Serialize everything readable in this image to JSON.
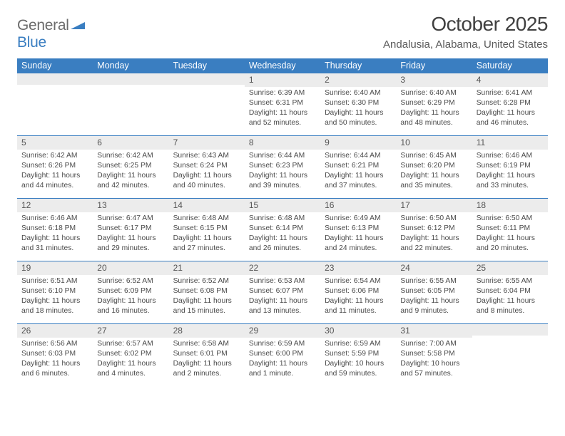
{
  "logo": {
    "textA": "General",
    "textB": "Blue"
  },
  "title": "October 2025",
  "location": "Andalusia, Alabama, United States",
  "colors": {
    "header_bg": "#3a7ec1",
    "header_text": "#ffffff",
    "daynum_bg": "#ececec",
    "daynum_text": "#555555",
    "body_text": "#4a4a4a",
    "rule": "#3a7ec1"
  },
  "weekdays": [
    "Sunday",
    "Monday",
    "Tuesday",
    "Wednesday",
    "Thursday",
    "Friday",
    "Saturday"
  ],
  "cells": [
    {
      "num": "",
      "sunrise": "",
      "sunset": "",
      "daylight": ""
    },
    {
      "num": "",
      "sunrise": "",
      "sunset": "",
      "daylight": ""
    },
    {
      "num": "",
      "sunrise": "",
      "sunset": "",
      "daylight": ""
    },
    {
      "num": "1",
      "sunrise": "6:39 AM",
      "sunset": "6:31 PM",
      "daylight": "11 hours and 52 minutes."
    },
    {
      "num": "2",
      "sunrise": "6:40 AM",
      "sunset": "6:30 PM",
      "daylight": "11 hours and 50 minutes."
    },
    {
      "num": "3",
      "sunrise": "6:40 AM",
      "sunset": "6:29 PM",
      "daylight": "11 hours and 48 minutes."
    },
    {
      "num": "4",
      "sunrise": "6:41 AM",
      "sunset": "6:28 PM",
      "daylight": "11 hours and 46 minutes."
    },
    {
      "num": "5",
      "sunrise": "6:42 AM",
      "sunset": "6:26 PM",
      "daylight": "11 hours and 44 minutes."
    },
    {
      "num": "6",
      "sunrise": "6:42 AM",
      "sunset": "6:25 PM",
      "daylight": "11 hours and 42 minutes."
    },
    {
      "num": "7",
      "sunrise": "6:43 AM",
      "sunset": "6:24 PM",
      "daylight": "11 hours and 40 minutes."
    },
    {
      "num": "8",
      "sunrise": "6:44 AM",
      "sunset": "6:23 PM",
      "daylight": "11 hours and 39 minutes."
    },
    {
      "num": "9",
      "sunrise": "6:44 AM",
      "sunset": "6:21 PM",
      "daylight": "11 hours and 37 minutes."
    },
    {
      "num": "10",
      "sunrise": "6:45 AM",
      "sunset": "6:20 PM",
      "daylight": "11 hours and 35 minutes."
    },
    {
      "num": "11",
      "sunrise": "6:46 AM",
      "sunset": "6:19 PM",
      "daylight": "11 hours and 33 minutes."
    },
    {
      "num": "12",
      "sunrise": "6:46 AM",
      "sunset": "6:18 PM",
      "daylight": "11 hours and 31 minutes."
    },
    {
      "num": "13",
      "sunrise": "6:47 AM",
      "sunset": "6:17 PM",
      "daylight": "11 hours and 29 minutes."
    },
    {
      "num": "14",
      "sunrise": "6:48 AM",
      "sunset": "6:15 PM",
      "daylight": "11 hours and 27 minutes."
    },
    {
      "num": "15",
      "sunrise": "6:48 AM",
      "sunset": "6:14 PM",
      "daylight": "11 hours and 26 minutes."
    },
    {
      "num": "16",
      "sunrise": "6:49 AM",
      "sunset": "6:13 PM",
      "daylight": "11 hours and 24 minutes."
    },
    {
      "num": "17",
      "sunrise": "6:50 AM",
      "sunset": "6:12 PM",
      "daylight": "11 hours and 22 minutes."
    },
    {
      "num": "18",
      "sunrise": "6:50 AM",
      "sunset": "6:11 PM",
      "daylight": "11 hours and 20 minutes."
    },
    {
      "num": "19",
      "sunrise": "6:51 AM",
      "sunset": "6:10 PM",
      "daylight": "11 hours and 18 minutes."
    },
    {
      "num": "20",
      "sunrise": "6:52 AM",
      "sunset": "6:09 PM",
      "daylight": "11 hours and 16 minutes."
    },
    {
      "num": "21",
      "sunrise": "6:52 AM",
      "sunset": "6:08 PM",
      "daylight": "11 hours and 15 minutes."
    },
    {
      "num": "22",
      "sunrise": "6:53 AM",
      "sunset": "6:07 PM",
      "daylight": "11 hours and 13 minutes."
    },
    {
      "num": "23",
      "sunrise": "6:54 AM",
      "sunset": "6:06 PM",
      "daylight": "11 hours and 11 minutes."
    },
    {
      "num": "24",
      "sunrise": "6:55 AM",
      "sunset": "6:05 PM",
      "daylight": "11 hours and 9 minutes."
    },
    {
      "num": "25",
      "sunrise": "6:55 AM",
      "sunset": "6:04 PM",
      "daylight": "11 hours and 8 minutes."
    },
    {
      "num": "26",
      "sunrise": "6:56 AM",
      "sunset": "6:03 PM",
      "daylight": "11 hours and 6 minutes."
    },
    {
      "num": "27",
      "sunrise": "6:57 AM",
      "sunset": "6:02 PM",
      "daylight": "11 hours and 4 minutes."
    },
    {
      "num": "28",
      "sunrise": "6:58 AM",
      "sunset": "6:01 PM",
      "daylight": "11 hours and 2 minutes."
    },
    {
      "num": "29",
      "sunrise": "6:59 AM",
      "sunset": "6:00 PM",
      "daylight": "11 hours and 1 minute."
    },
    {
      "num": "30",
      "sunrise": "6:59 AM",
      "sunset": "5:59 PM",
      "daylight": "10 hours and 59 minutes."
    },
    {
      "num": "31",
      "sunrise": "7:00 AM",
      "sunset": "5:58 PM",
      "daylight": "10 hours and 57 minutes."
    },
    {
      "num": "",
      "sunrise": "",
      "sunset": "",
      "daylight": ""
    }
  ],
  "labels": {
    "sunrise": "Sunrise:",
    "sunset": "Sunset:",
    "daylight": "Daylight:"
  }
}
